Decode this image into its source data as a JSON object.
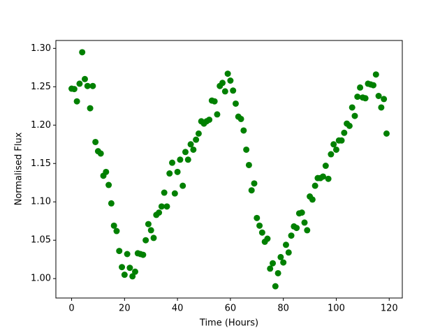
{
  "chart_data": {
    "type": "scatter",
    "x_label": "Time (Hours)",
    "y_label": "Normalised Flux",
    "color": "#008000",
    "xlim": [
      -5.95,
      124.95
    ],
    "ylim": [
      0.9747,
      1.3103
    ],
    "xticks": [
      0,
      20,
      40,
      60,
      80,
      100,
      120
    ],
    "yticks": [
      {
        "value": 1.0,
        "label": "1.00"
      },
      1.05,
      {
        "value": 1.1,
        "label": "1.10"
      },
      1.15,
      {
        "value": 1.2,
        "label": "1.20"
      },
      1.25,
      {
        "value": 1.3,
        "label": "1.30"
      }
    ],
    "x": [
      0,
      1,
      2,
      3,
      4,
      5,
      6,
      7,
      8,
      9,
      10,
      11,
      12,
      13,
      14,
      15,
      16,
      17,
      18,
      19,
      20,
      21,
      22,
      23,
      24,
      25,
      26,
      27,
      28,
      29,
      30,
      31,
      32,
      33,
      34,
      35,
      36,
      37,
      38,
      39,
      40,
      41,
      42,
      43,
      44,
      45,
      46,
      47,
      48,
      49,
      50,
      51,
      52,
      53,
      54,
      55,
      56,
      57,
      58,
      59,
      60,
      61,
      62,
      63,
      64,
      65,
      66,
      67,
      68,
      69,
      70,
      71,
      72,
      73,
      74,
      75,
      76,
      77,
      78,
      79,
      80,
      81,
      82,
      83,
      84,
      85,
      86,
      87,
      88,
      89,
      90,
      91,
      92,
      93,
      94,
      95,
      96,
      97,
      98,
      99,
      100,
      101,
      102,
      103,
      104,
      105,
      106,
      107,
      108,
      109,
      110,
      111,
      112,
      113,
      114,
      115,
      116,
      117,
      118,
      119
    ],
    "values": [
      1.2475,
      1.247,
      1.231,
      1.254,
      1.295,
      1.26,
      1.251,
      1.222,
      1.251,
      1.178,
      1.166,
      1.163,
      1.134,
      1.139,
      1.122,
      1.098,
      1.069,
      1.062,
      1.036,
      1.015,
      1.005,
      1.032,
      1.014,
      1.003,
      1.009,
      1.033,
      1.032,
      1.031,
      1.05,
      1.071,
      1.063,
      1.053,
      1.083,
      1.086,
      1.094,
      1.112,
      1.094,
      1.137,
      1.151,
      1.111,
      1.139,
      1.155,
      1.121,
      1.165,
      1.155,
      1.175,
      1.168,
      1.181,
      1.189,
      1.205,
      1.202,
      1.205,
      1.207,
      1.232,
      1.231,
      1.214,
      1.251,
      1.255,
      1.244,
      1.267,
      1.258,
      1.245,
      1.228,
      1.211,
      1.208,
      1.193,
      1.168,
      1.148,
      1.115,
      1.124,
      1.079,
      1.069,
      1.06,
      1.048,
      1.052,
      1.013,
      1.02,
      0.99,
      1.007,
      1.028,
      1.021,
      1.044,
      1.034,
      1.056,
      1.068,
      1.066,
      1.085,
      1.086,
      1.073,
      1.063,
      1.107,
      1.103,
      1.121,
      1.131,
      1.131,
      1.133,
      1.147,
      1.13,
      1.162,
      1.175,
      1.168,
      1.18,
      1.18,
      1.19,
      1.202,
      1.199,
      1.223,
      1.212,
      1.237,
      1.249,
      1.236,
      1.235,
      1.254,
      1.253,
      1.252,
      1.266,
      1.238,
      1.223,
      1.234,
      1.189
    ]
  }
}
